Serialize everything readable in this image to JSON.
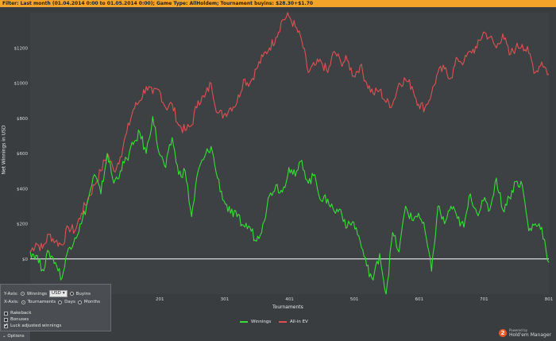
{
  "filter_bar": {
    "label": "Filter:",
    "text": "Last month (01.04.2014 0:00 to 01.05.2014 0:00); Game Type: AllHoldem; Tournament buyins: $28.30+$1.70"
  },
  "chart_data": {
    "type": "line",
    "ylabel": "Net Winnings in USD",
    "xlabel": "Tournaments",
    "xlim": [
      1,
      801
    ],
    "ylim": [
      -200,
      1400
    ],
    "y_ticks": [
      "$0",
      "$200",
      "$400",
      "$600",
      "$800",
      "$1000",
      "$1200"
    ],
    "y_tick_values": [
      0,
      200,
      400,
      600,
      800,
      1000,
      1200
    ],
    "x_ticks": [
      "101",
      "201",
      "301",
      "401",
      "501",
      "601",
      "701",
      "801"
    ],
    "x_tick_values": [
      101,
      201,
      301,
      401,
      501,
      601,
      701,
      801
    ],
    "legend_position": "bottom",
    "series": [
      {
        "name": "Winnings",
        "color": "#33e033",
        "x": [
          1,
          10,
          20,
          30,
          40,
          50,
          60,
          70,
          80,
          90,
          100,
          110,
          120,
          130,
          140,
          150,
          160,
          170,
          180,
          190,
          200,
          210,
          220,
          230,
          240,
          250,
          260,
          270,
          280,
          290,
          300,
          310,
          320,
          330,
          340,
          350,
          360,
          370,
          380,
          390,
          400,
          410,
          420,
          430,
          440,
          450,
          460,
          470,
          480,
          490,
          500,
          510,
          520,
          530,
          540,
          550,
          560,
          570,
          580,
          590,
          600,
          610,
          620,
          630,
          640,
          650,
          660,
          670,
          680,
          690,
          700,
          710,
          720,
          730,
          740,
          750,
          760,
          770,
          780,
          790,
          801
        ],
        "values": [
          40,
          20,
          -60,
          40,
          -20,
          -110,
          60,
          120,
          200,
          330,
          480,
          370,
          600,
          430,
          500,
          570,
          650,
          720,
          600,
          810,
          600,
          520,
          690,
          480,
          500,
          240,
          500,
          580,
          640,
          460,
          330,
          260,
          240,
          190,
          180,
          100,
          200,
          360,
          420,
          380,
          520,
          470,
          560,
          430,
          480,
          330,
          340,
          270,
          280,
          180,
          210,
          100,
          -40,
          -120,
          30,
          -200,
          150,
          40,
          300,
          220,
          260,
          160,
          -70,
          300,
          200,
          300,
          230,
          180,
          370,
          260,
          330,
          280,
          460,
          280,
          350,
          440,
          420,
          160,
          200,
          180,
          -20
        ],
        "visible_marks": 81
      },
      {
        "name": "All-in EV",
        "color": "#e05050",
        "x": [
          1,
          10,
          20,
          30,
          40,
          50,
          60,
          70,
          80,
          90,
          100,
          110,
          120,
          130,
          140,
          150,
          160,
          170,
          180,
          190,
          200,
          210,
          220,
          230,
          240,
          250,
          260,
          270,
          280,
          290,
          300,
          310,
          320,
          330,
          340,
          350,
          360,
          370,
          380,
          390,
          400,
          410,
          420,
          430,
          440,
          450,
          460,
          470,
          480,
          490,
          500,
          510,
          520,
          530,
          540,
          550,
          560,
          570,
          580,
          590,
          600,
          610,
          620,
          630,
          640,
          650,
          660,
          670,
          680,
          690,
          700,
          710,
          720,
          730,
          740,
          750,
          760,
          770,
          780,
          790,
          801
        ],
        "values": [
          40,
          90,
          60,
          140,
          100,
          80,
          180,
          160,
          260,
          340,
          420,
          500,
          600,
          500,
          580,
          720,
          850,
          900,
          980,
          940,
          960,
          860,
          880,
          760,
          730,
          760,
          900,
          920,
          1000,
          830,
          820,
          860,
          890,
          1020,
          1000,
          1080,
          1150,
          1200,
          1260,
          1360,
          1380,
          1320,
          1240,
          1060,
          1100,
          1120,
          1060,
          1180,
          1120,
          1130,
          1040,
          1100,
          1000,
          940,
          960,
          890,
          880,
          1000,
          1020,
          980,
          880,
          860,
          940,
          1060,
          1080,
          1030,
          1140,
          1120,
          1180,
          1200,
          1290,
          1260,
          1200,
          1280,
          1160,
          1200,
          1220,
          1170,
          1060,
          1120,
          1050
        ],
        "visible_marks": 81
      }
    ]
  },
  "options_panel": {
    "y_axis_label": "Y-Axis:",
    "y_opt_winnings": "Winnings",
    "y_currency": "USD",
    "y_opt_buyins": "Buyins",
    "x_axis_label": "X-Axis:",
    "x_opt_tournaments": "Tournaments",
    "x_opt_days": "Days",
    "x_opt_months": "Months",
    "rakeback": "Rakeback",
    "bonuses": "Bonuses",
    "luck": "Luck adjusted winnings"
  },
  "options_button": "Options",
  "brand": {
    "logo": "2",
    "powered": "Powered by",
    "name": "Hold'em Manager"
  }
}
